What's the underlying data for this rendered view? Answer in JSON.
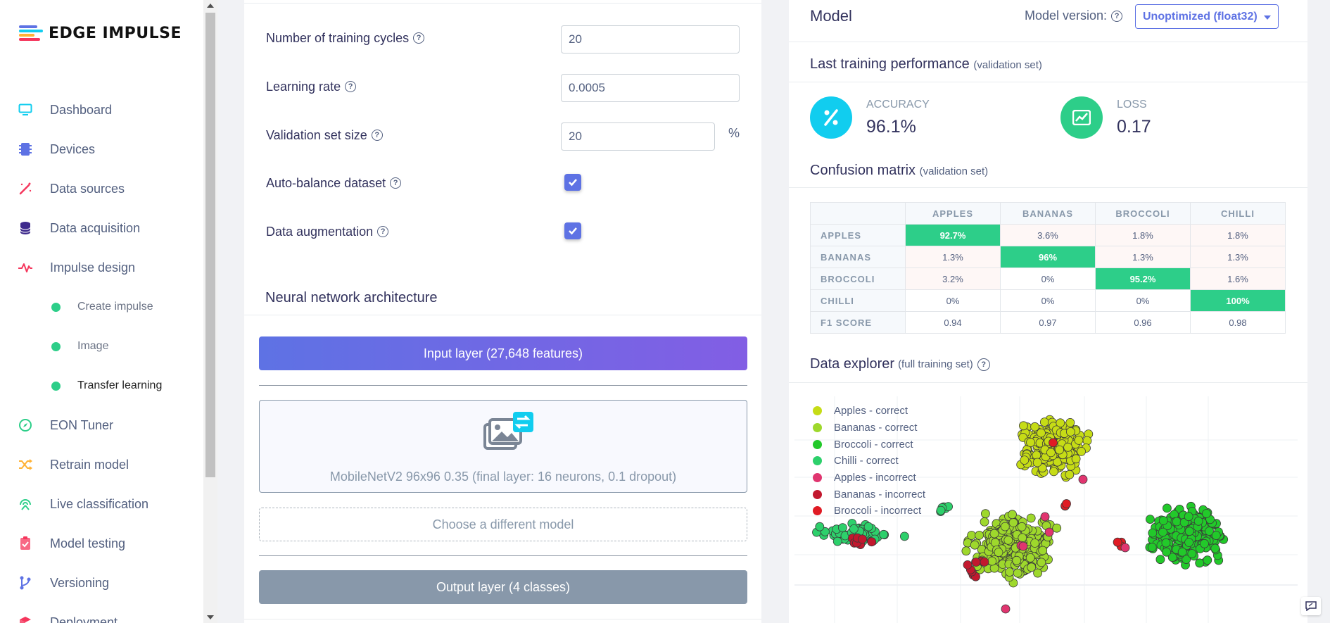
{
  "app": {
    "logo_text": "EDGE IMPULSE"
  },
  "sidebar": {
    "items": [
      {
        "label": "Dashboard",
        "icon": "monitor-icon"
      },
      {
        "label": "Devices",
        "icon": "chip-icon"
      },
      {
        "label": "Data sources",
        "icon": "wand-icon"
      },
      {
        "label": "Data acquisition",
        "icon": "database-icon"
      },
      {
        "label": "Impulse design",
        "icon": "pulse-icon"
      },
      {
        "label": "EON Tuner",
        "icon": "compass-icon"
      },
      {
        "label": "Retrain model",
        "icon": "shuffle-icon"
      },
      {
        "label": "Live classification",
        "icon": "broadcast-icon"
      },
      {
        "label": "Model testing",
        "icon": "clipboard-check-icon"
      },
      {
        "label": "Versioning",
        "icon": "git-branch-icon"
      },
      {
        "label": "Deployment",
        "icon": "box-icon"
      }
    ],
    "subitems": [
      {
        "label": "Create impulse"
      },
      {
        "label": "Image"
      },
      {
        "label": "Transfer learning"
      }
    ]
  },
  "settings": {
    "training_cycles": {
      "label": "Number of training cycles",
      "value": "20"
    },
    "learning_rate": {
      "label": "Learning rate",
      "value": "0.0005"
    },
    "validation_size": {
      "label": "Validation set size",
      "value": "20",
      "unit": "%"
    },
    "auto_balance": {
      "label": "Auto-balance dataset",
      "checked": true
    },
    "data_augmentation": {
      "label": "Data augmentation",
      "checked": true
    }
  },
  "architecture": {
    "title": "Neural network architecture",
    "input_layer": "Input layer (27,648 features)",
    "model_caption": "MobileNetV2 96x96 0.35 (final layer: 16 neurons, 0.1 dropout)",
    "choose_model": "Choose a different model",
    "output_layer": "Output layer (4 classes)"
  },
  "model": {
    "title": "Model",
    "version_label": "Model version:",
    "version_value": "Unoptimized (float32)",
    "performance_title": "Last training performance",
    "performance_sub": "(validation set)",
    "accuracy_label": "ACCURACY",
    "accuracy_value": "96.1%",
    "loss_label": "LOSS",
    "loss_value": "0.17",
    "accuracy_color": "#11cdef",
    "loss_color": "#2dce89"
  },
  "confusion": {
    "title": "Confusion matrix",
    "sub": "(validation set)",
    "columns": [
      "APPLES",
      "BANANAS",
      "BROCCOLI",
      "CHILLI"
    ],
    "rows": [
      {
        "label": "APPLES",
        "cells": [
          "92.7%",
          "3.6%",
          "1.8%",
          "1.8%"
        ]
      },
      {
        "label": "BANANAS",
        "cells": [
          "1.3%",
          "96%",
          "1.3%",
          "1.3%"
        ]
      },
      {
        "label": "BROCCOLI",
        "cells": [
          "3.2%",
          "0%",
          "95.2%",
          "1.6%"
        ]
      },
      {
        "label": "CHILLI",
        "cells": [
          "0%",
          "0%",
          "0%",
          "100%"
        ]
      }
    ],
    "f1": {
      "label": "F1 SCORE",
      "cells": [
        "0.94",
        "0.97",
        "0.96",
        "0.98"
      ]
    }
  },
  "explorer": {
    "title": "Data explorer",
    "sub": "(full training set)",
    "legend": [
      {
        "label": "Apples - correct",
        "color": "#c6dc16"
      },
      {
        "label": "Bananas - correct",
        "color": "#9ed82c"
      },
      {
        "label": "Broccoli - correct",
        "color": "#22c92a"
      },
      {
        "label": "Chilli - correct",
        "color": "#2dd06b"
      },
      {
        "label": "Apples - incorrect",
        "color": "#e0356f"
      },
      {
        "label": "Bananas - incorrect",
        "color": "#c2182e"
      },
      {
        "label": "Broccoli - incorrect",
        "color": "#e01b24"
      }
    ]
  }
}
